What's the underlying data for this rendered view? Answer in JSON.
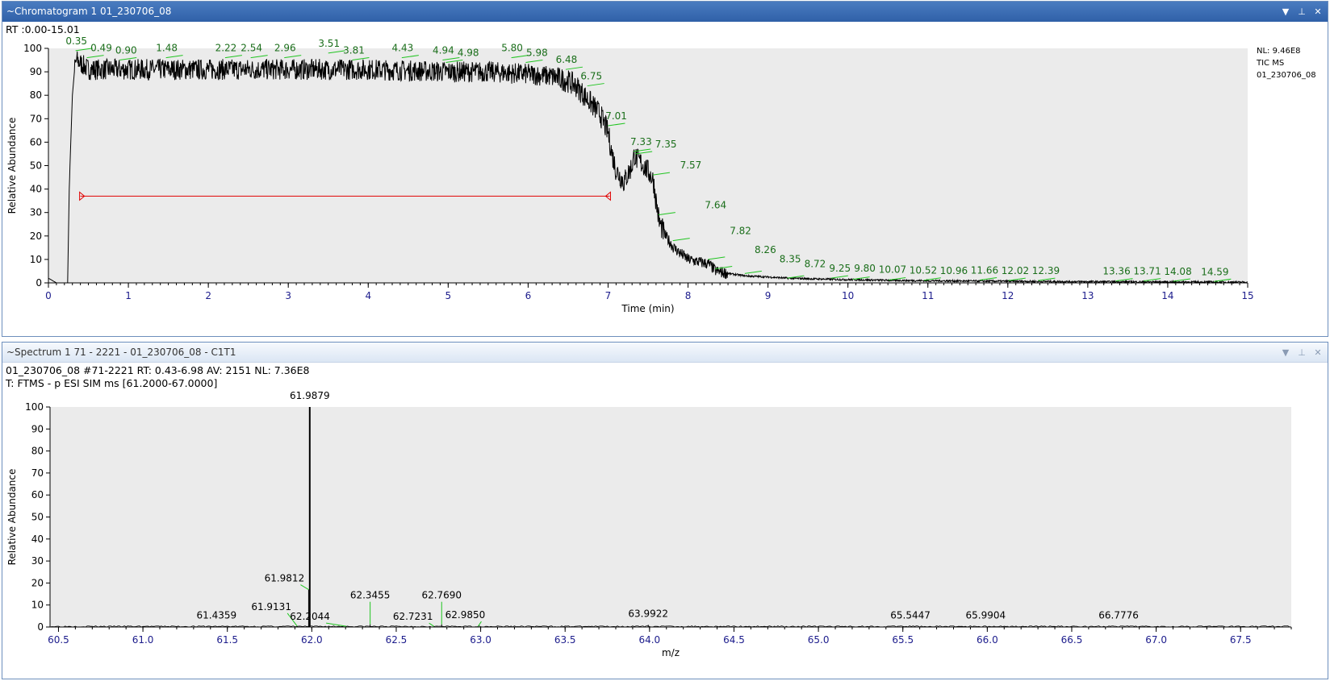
{
  "chromatogram_pane": {
    "title": "~Chromatogram  1  01_230706_08",
    "rt_range": "RT :0.00-15.01",
    "nl_info": [
      "NL: 9.46E8",
      "TIC  MS",
      "01_230706_08"
    ]
  },
  "spectrum_pane": {
    "title": "~Spectrum  1  71 - 2221  - 01_230706_08 - C1T1",
    "scan_info": "01_230706_08 #71-2221  RT: 0.43-6.98  AV: 2151  NL: 7.36E8",
    "filter": "T: FTMS - p ESI SIM ms [61.2000-67.0000]"
  },
  "window_controls": {
    "dropdown": "▼",
    "pin": "⊥",
    "close": "✕"
  },
  "colors": {
    "title_active": "#2f60a8",
    "plot_bg": "#ebebeb",
    "peak_label": "#1a6e1a",
    "axis_tick_label": "#1c1c8c",
    "trace": "#000000",
    "range_marker": "#e00000",
    "leader_line": "#1fc41f"
  },
  "chart_data": [
    {
      "type": "line",
      "title": "",
      "xlabel": "Time (min)",
      "ylabel": "Relative Abundance",
      "xlim": [
        0,
        15
      ],
      "ylim": [
        0,
        100
      ],
      "x_ticks": [
        "0",
        "1",
        "2",
        "3",
        "4",
        "5",
        "6",
        "7",
        "8",
        "9",
        "10",
        "11",
        "12",
        "13",
        "14",
        "15"
      ],
      "y_ticks": [
        "0",
        "10",
        "20",
        "30",
        "40",
        "50",
        "60",
        "70",
        "80",
        "90",
        "100"
      ],
      "profile": {
        "x": [
          0,
          0.05,
          0.1,
          0.2,
          0.24,
          0.26,
          0.3,
          0.33,
          0.35,
          0.5,
          1.0,
          2.0,
          3.0,
          4.0,
          5.0,
          5.5,
          6.0,
          6.3,
          6.5,
          6.6,
          6.75,
          6.9,
          7.0,
          7.05,
          7.1,
          7.2,
          7.3,
          7.33,
          7.35,
          7.45,
          7.55,
          7.57,
          7.6,
          7.64,
          7.7,
          7.82,
          8.0,
          8.26,
          8.35,
          8.5,
          8.72,
          9.0,
          9.25,
          9.8,
          10.5,
          11.0,
          12.0,
          13.0,
          14.0,
          15.0
        ],
        "y": [
          2,
          1,
          0,
          0,
          0,
          40,
          80,
          92,
          95,
          91,
          91,
          91,
          91,
          91,
          90,
          90,
          89,
          88,
          86,
          84,
          78,
          72,
          64,
          55,
          48,
          43,
          50,
          55,
          53,
          50,
          45,
          43,
          35,
          26,
          21,
          15,
          10,
          8,
          5,
          4,
          3,
          2.5,
          2,
          1.5,
          1.1,
          0.9,
          0.7,
          0.5,
          0.4,
          0.3
        ]
      },
      "peak_labels": [
        {
          "x": 0.35,
          "y": 99,
          "label": "0.35"
        },
        {
          "x": 0.49,
          "y": 96,
          "label": "0.49"
        },
        {
          "x": 0.9,
          "y": 95,
          "label": "0.90"
        },
        {
          "x": 1.48,
          "y": 96,
          "label": "1.48"
        },
        {
          "x": 2.22,
          "y": 96,
          "label": "2.22"
        },
        {
          "x": 2.54,
          "y": 96,
          "label": "2.54"
        },
        {
          "x": 2.96,
          "y": 96,
          "label": "2.96"
        },
        {
          "x": 3.51,
          "y": 98,
          "label": "3.51"
        },
        {
          "x": 3.81,
          "y": 95,
          "label": "3.81"
        },
        {
          "x": 4.43,
          "y": 96,
          "label": "4.43"
        },
        {
          "x": 4.94,
          "y": 95,
          "label": "4.94"
        },
        {
          "x": 4.98,
          "y": 94,
          "label": "4.98"
        },
        {
          "x": 5.8,
          "y": 96,
          "label": "5.80"
        },
        {
          "x": 5.98,
          "y": 94,
          "label": "5.98"
        },
        {
          "x": 6.48,
          "y": 91,
          "label": "6.48"
        },
        {
          "x": 6.75,
          "y": 84,
          "label": "6.75"
        },
        {
          "x": 7.01,
          "y": 67,
          "label": "7.01"
        },
        {
          "x": 7.33,
          "y": 56,
          "label": "7.33"
        },
        {
          "x": 7.35,
          "y": 55,
          "label": "7.35"
        },
        {
          "x": 7.57,
          "y": 46,
          "label": "7.57"
        },
        {
          "x": 7.64,
          "y": 29,
          "label": "7.64"
        },
        {
          "x": 7.82,
          "y": 18,
          "label": "7.82"
        },
        {
          "x": 8.26,
          "y": 10,
          "label": "8.26"
        },
        {
          "x": 8.35,
          "y": 6,
          "label": "8.35"
        },
        {
          "x": 8.72,
          "y": 4,
          "label": "8.72"
        },
        {
          "x": 9.25,
          "y": 2,
          "label": "9.25"
        },
        {
          "x": 9.8,
          "y": 2,
          "label": "9.80"
        },
        {
          "x": 10.07,
          "y": 1.5,
          "label": "10.07"
        },
        {
          "x": 10.52,
          "y": 1.2,
          "label": "10.52"
        },
        {
          "x": 10.96,
          "y": 1.1,
          "label": "10.96"
        },
        {
          "x": 11.66,
          "y": 1.2,
          "label": "11.66"
        },
        {
          "x": 12.02,
          "y": 1,
          "label": "12.02"
        },
        {
          "x": 12.39,
          "y": 1,
          "label": "12.39"
        },
        {
          "x": 13.36,
          "y": 0.8,
          "label": "13.36"
        },
        {
          "x": 13.71,
          "y": 0.8,
          "label": "13.71"
        },
        {
          "x": 14.08,
          "y": 0.7,
          "label": "14.08"
        },
        {
          "x": 14.59,
          "y": 0.6,
          "label": "14.59"
        }
      ],
      "range_marker": {
        "x_start": 0.4,
        "x_end": 7.02,
        "y": 37
      }
    },
    {
      "type": "bar",
      "title": "",
      "xlabel": "m/z",
      "ylabel": "Relative Abundance",
      "xlim": [
        60.45,
        67.8
      ],
      "ylim": [
        0,
        100
      ],
      "x_ticks": [
        "60.5",
        "61.0",
        "61.5",
        "62.0",
        "62.5",
        "63.0",
        "63.5",
        "64.0",
        "64.5",
        "65.0",
        "65.5",
        "66.0",
        "66.5",
        "67.0",
        "67.5"
      ],
      "y_ticks": [
        "0",
        "10",
        "20",
        "30",
        "40",
        "50",
        "60",
        "70",
        "80",
        "90",
        "100"
      ],
      "peaks": [
        {
          "mz": 61.4359,
          "rel": 0.2,
          "label": "61.4359"
        },
        {
          "mz": 61.9131,
          "rel": 0.4,
          "label": "61.9131"
        },
        {
          "mz": 61.9812,
          "rel": 17,
          "label": "61.9812"
        },
        {
          "mz": 61.9879,
          "rel": 100,
          "label": "61.9879"
        },
        {
          "mz": 62.2044,
          "rel": 0.3,
          "label": "62.2044"
        },
        {
          "mz": 62.3455,
          "rel": 1.2,
          "label": "62.3455"
        },
        {
          "mz": 62.7231,
          "rel": 0.3,
          "label": "62.7231"
        },
        {
          "mz": 62.769,
          "rel": 1.2,
          "label": "62.7690"
        },
        {
          "mz": 62.985,
          "rel": 0.3,
          "label": "62.9850"
        },
        {
          "mz": 63.9922,
          "rel": 1,
          "label": "63.9922"
        },
        {
          "mz": 65.5447,
          "rel": 0.2,
          "label": "65.5447"
        },
        {
          "mz": 65.9904,
          "rel": 0.2,
          "label": "65.9904"
        },
        {
          "mz": 66.7776,
          "rel": 0.2,
          "label": "66.7776"
        }
      ]
    }
  ]
}
